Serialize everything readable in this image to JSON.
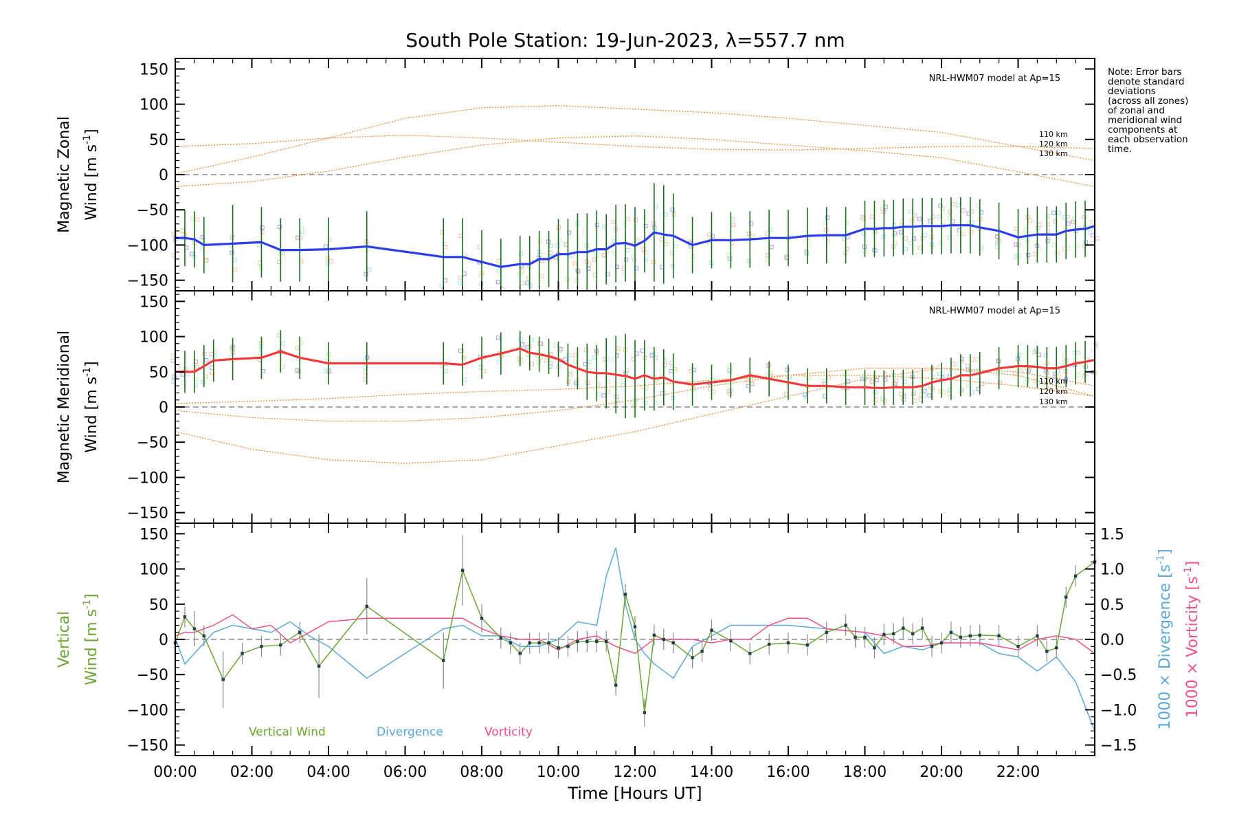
{
  "title": "South Pole Station: 19-Jun-2023, λ=557.7 nm",
  "note_lines": [
    "Note: Error bars",
    "denote standard",
    "deviations",
    "(across all zones)",
    "of zonal and",
    "meridional wind",
    "components at",
    "each observation",
    "time."
  ],
  "colors": {
    "zonal": "#2b3fe8",
    "meridional": "#f23a3a",
    "vertical": "#6aa632",
    "divergence": "#5aa8db",
    "vorticity": "#f0508a",
    "model": "#f08a30",
    "errorbar": "#1a6e1a",
    "scatter": "#9c9cf0",
    "zero": "#888888"
  },
  "chart_data": [
    {
      "type": "line",
      "panel": "zonal",
      "ylabel_line1": "Magnetic Zonal",
      "ylabel_line2": "Wind [m s",
      "ylabel_sup": "-1",
      "ylabel_close": "]",
      "xlim": [
        0,
        24
      ],
      "ylim": [
        -165,
        165
      ],
      "yticks": [
        -150,
        -100,
        -50,
        0,
        50,
        100,
        150
      ],
      "model_label": "NRL-HWM07 model at Ap=15",
      "model_alt_labels": [
        "110 km",
        "120 km",
        "130 km"
      ],
      "model_curves": [
        {
          "name": "110 km",
          "x": [
            0,
            2,
            4,
            6,
            8,
            10,
            12,
            14,
            16,
            18,
            20,
            22,
            24
          ],
          "y": [
            -17,
            -10,
            5,
            25,
            42,
            52,
            55,
            50,
            42,
            34,
            24,
            4,
            -17
          ]
        },
        {
          "name": "120 km",
          "x": [
            0,
            2,
            4,
            6,
            8,
            10,
            12,
            14,
            16,
            18,
            20,
            22,
            24
          ],
          "y": [
            1,
            25,
            52,
            80,
            95,
            98,
            93,
            88,
            80,
            70,
            60,
            40,
            20
          ]
        },
        {
          "name": "130 km",
          "x": [
            0,
            2,
            4,
            6,
            8,
            10,
            12,
            14,
            16,
            18,
            20,
            22,
            24
          ],
          "y": [
            40,
            44,
            52,
            56,
            52,
            46,
            40,
            36,
            35,
            37,
            40,
            40,
            37
          ]
        }
      ],
      "series": [
        {
          "name": "Zonal Wind",
          "x": [
            0,
            0.25,
            0.5,
            0.75,
            1.5,
            2.25,
            2.75,
            3.25,
            4.0,
            5.0,
            7.0,
            7.5,
            8.0,
            8.5,
            9.0,
            9.25,
            9.5,
            9.75,
            10.0,
            10.25,
            10.5,
            10.75,
            11.0,
            11.25,
            11.5,
            11.75,
            12.0,
            12.25,
            12.5,
            12.75,
            13.0,
            13.5,
            14.0,
            14.5,
            15.0,
            15.5,
            16.0,
            16.5,
            17.0,
            17.5,
            18.0,
            18.25,
            18.5,
            18.75,
            19.0,
            19.25,
            19.5,
            19.75,
            20.0,
            20.25,
            20.5,
            20.75,
            21.0,
            21.5,
            22.0,
            22.25,
            22.5,
            22.75,
            23.0,
            23.25,
            23.5,
            23.75,
            24.0
          ],
          "y": [
            -90,
            -90,
            -92,
            -100,
            -98,
            -96,
            -107,
            -107,
            -106,
            -102,
            -117,
            -117,
            -124,
            -131,
            -127,
            -127,
            -120,
            -120,
            -113,
            -113,
            -110,
            -110,
            -106,
            -106,
            -98,
            -97,
            -101,
            -94,
            -82,
            -85,
            -87,
            -100,
            -93,
            -93,
            -92,
            -90,
            -90,
            -87,
            -86,
            -86,
            -77,
            -77,
            -76,
            -76,
            -74,
            -74,
            -73,
            -73,
            -73,
            -72,
            -72,
            -72,
            -75,
            -80,
            -89,
            -87,
            -85,
            -85,
            -85,
            -80,
            -78,
            -77,
            -73
          ],
          "err": [
            40,
            40,
            40,
            40,
            55,
            50,
            45,
            45,
            45,
            50,
            55,
            55,
            45,
            40,
            40,
            40,
            40,
            40,
            50,
            50,
            55,
            55,
            55,
            50,
            55,
            55,
            55,
            45,
            70,
            70,
            60,
            40,
            40,
            40,
            40,
            40,
            40,
            40,
            40,
            40,
            40,
            40,
            40,
            40,
            40,
            40,
            40,
            40,
            40,
            40,
            40,
            40,
            40,
            40,
            40,
            40,
            40,
            40,
            40,
            40,
            40,
            40,
            40
          ]
        }
      ]
    },
    {
      "type": "line",
      "panel": "meridional",
      "ylabel_line1": "Magnetic Meridional",
      "ylabel_line2": "Wind [m s",
      "ylabel_sup": "-1",
      "ylabel_close": "]",
      "xlim": [
        0,
        24
      ],
      "ylim": [
        -165,
        165
      ],
      "yticks": [
        -150,
        -100,
        -50,
        0,
        50,
        100,
        150
      ],
      "model_label": "NRL-HWM07 model at Ap=15",
      "model_alt_labels": [
        "110 km",
        "120 km",
        "130 km"
      ],
      "model_curves": [
        {
          "name": "110 km",
          "x": [
            0,
            2,
            4,
            6,
            8,
            10,
            12,
            14,
            16,
            18,
            20,
            22,
            24
          ],
          "y": [
            -35,
            -60,
            -75,
            -80,
            -75,
            -55,
            -35,
            -10,
            15,
            40,
            55,
            50,
            30
          ]
        },
        {
          "name": "120 km",
          "x": [
            0,
            2,
            4,
            6,
            8,
            10,
            12,
            14,
            16,
            18,
            20,
            22,
            24
          ],
          "y": [
            -5,
            -15,
            -20,
            -20,
            -15,
            -5,
            10,
            30,
            45,
            55,
            55,
            45,
            15
          ]
        },
        {
          "name": "130 km",
          "x": [
            0,
            2,
            4,
            6,
            8,
            10,
            12,
            14,
            16,
            18,
            20,
            22,
            24
          ],
          "y": [
            5,
            8,
            12,
            18,
            22,
            25,
            30,
            38,
            45,
            45,
            40,
            30,
            15
          ]
        }
      ],
      "series": [
        {
          "name": "Meridional Wind",
          "x": [
            0,
            0.25,
            0.5,
            0.75,
            1.0,
            1.5,
            2.25,
            2.75,
            3.25,
            4.0,
            5.0,
            7.0,
            7.5,
            8.0,
            8.5,
            9.0,
            9.25,
            9.5,
            9.75,
            10.0,
            10.25,
            10.5,
            10.75,
            11.0,
            11.25,
            11.5,
            11.75,
            12.0,
            12.25,
            12.5,
            12.75,
            13.0,
            13.5,
            14.0,
            14.5,
            15.0,
            15.5,
            16.0,
            16.5,
            17.0,
            17.5,
            18.0,
            18.25,
            18.5,
            18.75,
            19.0,
            19.25,
            19.5,
            19.75,
            20.0,
            20.25,
            20.5,
            20.75,
            21.0,
            21.5,
            22.0,
            22.25,
            22.5,
            22.75,
            23.0,
            23.25,
            23.5,
            23.75,
            24.0
          ],
          "y": [
            50,
            50,
            50,
            58,
            66,
            68,
            70,
            79,
            70,
            62,
            62,
            62,
            60,
            70,
            76,
            83,
            77,
            75,
            72,
            68,
            60,
            55,
            50,
            48,
            48,
            46,
            44,
            40,
            45,
            40,
            42,
            36,
            32,
            35,
            38,
            45,
            40,
            35,
            30,
            30,
            28,
            28,
            27,
            27,
            28,
            28,
            28,
            30,
            35,
            38,
            40,
            45,
            45,
            48,
            55,
            58,
            58,
            57,
            55,
            55,
            58,
            62,
            64,
            67
          ],
          "err": [
            30,
            30,
            30,
            30,
            30,
            30,
            30,
            30,
            30,
            30,
            30,
            30,
            30,
            30,
            30,
            25,
            25,
            25,
            25,
            25,
            30,
            30,
            40,
            40,
            50,
            55,
            60,
            55,
            50,
            45,
            40,
            40,
            30,
            25,
            25,
            25,
            25,
            25,
            25,
            25,
            25,
            25,
            25,
            25,
            25,
            25,
            25,
            25,
            25,
            25,
            30,
            30,
            30,
            30,
            30,
            30,
            30,
            30,
            30,
            30,
            30,
            30,
            30,
            30
          ]
        }
      ]
    },
    {
      "type": "line",
      "panel": "vertical",
      "ylabel_line1": "Vertical",
      "ylabel_line2": "Wind [m s",
      "ylabel_sup": "-1",
      "ylabel_close": "]",
      "ylabel_right1": "1000 × Divergence [s",
      "ylabel_right2": "1000 × Vorticity [s",
      "ylabel_right_sup": "-1",
      "ylabel_right_close": "]",
      "xlim": [
        0,
        24
      ],
      "ylim": [
        -165,
        165
      ],
      "yticks": [
        -150,
        -100,
        -50,
        0,
        50,
        100,
        150
      ],
      "y2lim": [
        -1.65,
        1.65
      ],
      "y2ticks": [
        -1.5,
        -1.0,
        -0.5,
        0.0,
        0.5,
        1.0,
        1.5
      ],
      "y2ticklabels": [
        "−1.5",
        "−1.0",
        "−0.5",
        "0.0",
        "0.5",
        "1.0",
        "1.5"
      ],
      "legend": [
        "Vertical Wind",
        "Divergence",
        "Vorticity"
      ],
      "xlabel": "Time [Hours UT]",
      "xticks": [
        0,
        2,
        4,
        6,
        8,
        10,
        12,
        14,
        16,
        18,
        20,
        22
      ],
      "xticklabels": [
        "00:00",
        "02:00",
        "04:00",
        "06:00",
        "08:00",
        "10:00",
        "12:00",
        "14:00",
        "16:00",
        "18:00",
        "20:00",
        "22:00"
      ],
      "series": [
        {
          "name": "Vertical Wind",
          "x": [
            0,
            0.25,
            0.5,
            0.75,
            1.25,
            1.75,
            2.25,
            2.75,
            3.25,
            3.75,
            5.0,
            7.0,
            7.5,
            8.0,
            8.5,
            8.75,
            9.0,
            9.25,
            9.5,
            9.75,
            10.0,
            10.25,
            10.5,
            10.75,
            11.0,
            11.25,
            11.5,
            11.75,
            12.0,
            12.25,
            12.5,
            12.75,
            13.0,
            13.5,
            13.75,
            14.0,
            14.5,
            15.0,
            15.5,
            16.0,
            16.5,
            17.0,
            17.5,
            17.75,
            18.0,
            18.25,
            18.5,
            18.75,
            19.0,
            19.25,
            19.5,
            19.75,
            20.0,
            20.25,
            20.5,
            20.75,
            21.0,
            21.5,
            22.0,
            22.5,
            22.75,
            23.0,
            23.25,
            23.5,
            24.0
          ],
          "y": [
            -5,
            32,
            15,
            5,
            -57,
            -20,
            -10,
            -8,
            10,
            -38,
            47,
            -30,
            98,
            30,
            2,
            -5,
            -20,
            -5,
            -5,
            -5,
            -12,
            -10,
            -3,
            -3,
            -3,
            -3,
            -65,
            64,
            18,
            -104,
            6,
            0,
            -5,
            -26,
            -17,
            13,
            -2,
            -20,
            -7,
            -5,
            -8,
            10,
            20,
            3,
            3,
            -12,
            7,
            8,
            16,
            8,
            16,
            -10,
            -5,
            10,
            3,
            5,
            6,
            5,
            -10,
            5,
            -17,
            -12,
            60,
            90,
            110
          ],
          "err": [
            15,
            15,
            25,
            15,
            40,
            15,
            15,
            15,
            15,
            45,
            40,
            40,
            50,
            20,
            15,
            15,
            15,
            15,
            15,
            15,
            15,
            15,
            15,
            15,
            15,
            15,
            15,
            15,
            15,
            20,
            15,
            15,
            15,
            15,
            15,
            15,
            15,
            15,
            15,
            15,
            15,
            15,
            15,
            15,
            15,
            15,
            15,
            15,
            15,
            15,
            15,
            15,
            15,
            15,
            15,
            15,
            15,
            15,
            15,
            15,
            15,
            15,
            15,
            15,
            15
          ]
        },
        {
          "name": "Divergence",
          "x": [
            0,
            0.25,
            0.5,
            1.0,
            1.5,
            2.0,
            2.5,
            3.0,
            3.5,
            4.0,
            5.0,
            6.0,
            7.0,
            7.5,
            8.0,
            8.5,
            9.0,
            9.5,
            10.0,
            10.5,
            11.0,
            11.25,
            11.5,
            11.75,
            12.0,
            12.25,
            12.5,
            13.0,
            13.5,
            14.0,
            14.5,
            15.0,
            16.0,
            17.0,
            18.0,
            18.5,
            19.0,
            19.5,
            20.0,
            20.5,
            21.0,
            21.5,
            22.0,
            22.5,
            23.0,
            23.5,
            24.0
          ],
          "y": [
            0.02,
            -0.35,
            -0.2,
            0.1,
            0.2,
            0.15,
            0.1,
            0.25,
            0.05,
            -0.1,
            -0.55,
            -0.2,
            0.15,
            0.2,
            0.05,
            0.05,
            -0.1,
            -0.1,
            0.0,
            0.25,
            0.2,
            0.9,
            1.3,
            0.5,
            0.0,
            -0.2,
            -0.35,
            -0.55,
            -0.1,
            0.05,
            0.2,
            0.2,
            0.2,
            0.15,
            0.1,
            -0.2,
            -0.1,
            -0.15,
            -0.05,
            -0.05,
            -0.05,
            -0.2,
            -0.25,
            -0.45,
            -0.25,
            -0.6,
            -1.3
          ]
        },
        {
          "name": "Vorticity",
          "x": [
            0,
            0.25,
            0.5,
            1.0,
            1.5,
            2.0,
            2.5,
            3.0,
            3.5,
            4.0,
            5.0,
            6.0,
            7.0,
            7.5,
            8.0,
            8.5,
            9.0,
            9.5,
            10.0,
            10.5,
            11.0,
            11.5,
            12.0,
            12.25,
            12.5,
            13.0,
            13.5,
            14.0,
            14.5,
            15.0,
            15.5,
            16.0,
            16.5,
            17.0,
            18.0,
            18.5,
            19.0,
            19.5,
            20.0,
            20.5,
            21.0,
            21.5,
            22.0,
            22.5,
            23.0,
            23.5,
            24.0
          ],
          "y": [
            0.05,
            0.1,
            0.1,
            0.2,
            0.35,
            0.15,
            0.2,
            -0.05,
            0.1,
            0.25,
            0.3,
            0.3,
            0.3,
            0.3,
            0.15,
            0.05,
            0.0,
            0.0,
            -0.15,
            0.0,
            0.05,
            -0.1,
            -0.2,
            -0.1,
            0.0,
            0.0,
            0.0,
            -0.05,
            0.0,
            0.0,
            0.2,
            0.3,
            0.3,
            0.15,
            0.1,
            0.05,
            -0.1,
            -0.1,
            -0.05,
            -0.05,
            -0.05,
            -0.1,
            -0.15,
            0.0,
            0.05,
            0.0,
            -0.2
          ]
        }
      ]
    }
  ]
}
